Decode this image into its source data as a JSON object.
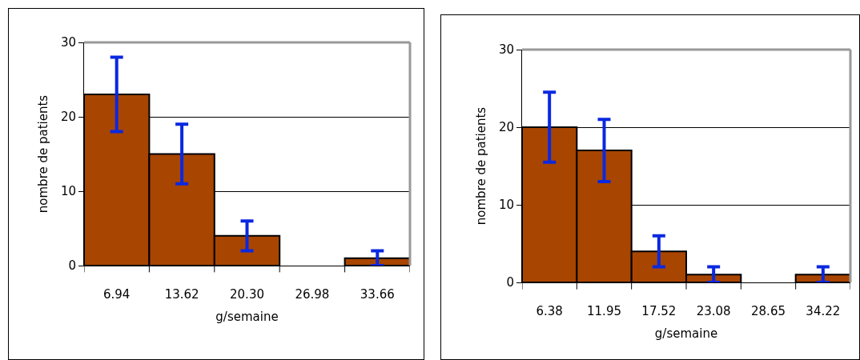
{
  "chart_data": [
    {
      "type": "bar",
      "xlabel": "g/semaine",
      "ylabel": "nombre de patients",
      "categories": [
        "6.94",
        "13.62",
        "20.30",
        "26.98",
        "33.66"
      ],
      "values": [
        23,
        15,
        4,
        0,
        1
      ],
      "errors": [
        5,
        4,
        2,
        null,
        1
      ],
      "color": "#a84500",
      "ylim": [
        0,
        30
      ],
      "yticks": [
        0,
        10,
        20,
        30
      ],
      "grid": "y"
    },
    {
      "type": "bar",
      "xlabel": "g/semaine",
      "ylabel": "nombre de patients",
      "categories": [
        "6.38",
        "11.95",
        "17.52",
        "23.08",
        "28.65",
        "34.22"
      ],
      "values": [
        20,
        17,
        4,
        1,
        0,
        1
      ],
      "errors": [
        4.5,
        4,
        2,
        1,
        null,
        1
      ],
      "color": "#a84500",
      "ylim": [
        0,
        30
      ],
      "yticks": [
        0,
        10,
        20,
        30
      ],
      "grid": "y"
    }
  ]
}
